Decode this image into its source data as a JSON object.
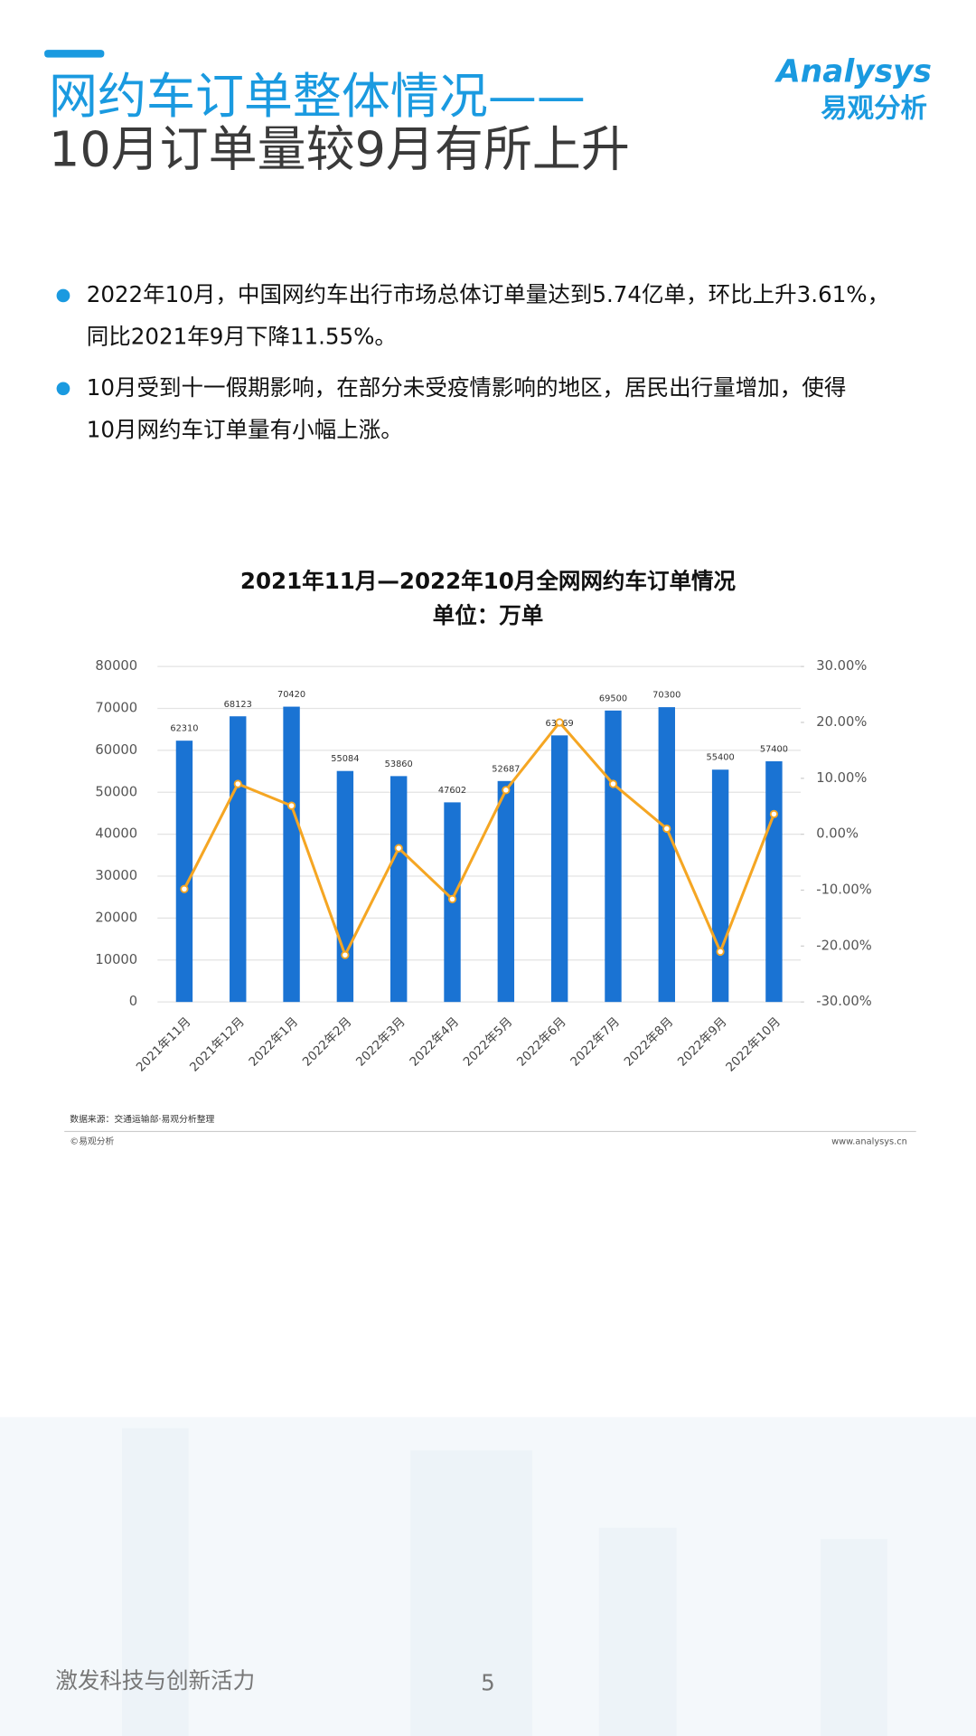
{
  "header": {
    "title_line1": "网约车订单整体情况——",
    "title_line2": "10月订单量较9月有所上升"
  },
  "logo": {
    "brand": "Analysys",
    "name": "易观分析"
  },
  "bullets": [
    {
      "line1": "2022年10月，中国网约车出行市场总体订单量达到5.74亿单，环比上升3.61%，",
      "line2": "同比2021年9月下降11.55%。"
    },
    {
      "line1": "10月受到十一假期影响，在部分未受疫情影响的地区，居民出行量增加，使得",
      "line2": "10月网约车订单量有小幅上涨。"
    }
  ],
  "chart_data": {
    "type": "bar",
    "title": "2021年11月—2022年10月全网网约车订单情况",
    "subtitle": "单位：万单",
    "categories": [
      "2021年11月",
      "2021年12月",
      "2022年1月",
      "2022年2月",
      "2022年3月",
      "2022年4月",
      "2022年5月",
      "2022年6月",
      "2022年7月",
      "2022年8月",
      "2022年9月",
      "2022年10月"
    ],
    "series": [
      {
        "type": "bar",
        "color": "#1a73d3",
        "values": [
          62310,
          68123,
          70420,
          55084,
          53860,
          47602,
          52687,
          63569,
          69500,
          70300,
          55400,
          57400
        ]
      },
      {
        "type": "line",
        "axis": "y2",
        "color": "#f5a623",
        "values": [
          -9.8,
          9.0,
          5.1,
          -21.6,
          -2.5,
          -11.6,
          7.9,
          20.0,
          9.0,
          1.0,
          -21.0,
          3.61
        ]
      }
    ],
    "ylim": [
      0,
      80000
    ],
    "yticks": [
      0,
      10000,
      20000,
      30000,
      40000,
      50000,
      60000,
      70000,
      80000
    ],
    "y2lim": [
      -30,
      30
    ],
    "y2ticks": [
      {
        "value": -30,
        "label": "-30.00%"
      },
      {
        "value": -20,
        "label": "-20.00%"
      },
      {
        "value": -10,
        "label": "-10.00%"
      },
      {
        "value": 0,
        "label": "0.00%"
      },
      {
        "value": 10,
        "label": "10.00%"
      },
      {
        "value": 20,
        "label": "20.00%"
      },
      {
        "value": 30,
        "label": "30.00%"
      }
    ],
    "grid": true
  },
  "source": {
    "note": "数据来源：交通运输部·易观分析整理",
    "copyright": "©易观分析",
    "url": "www.analysys.cn"
  },
  "footer": {
    "slogan": "激发科技与创新活力",
    "page": "5"
  }
}
